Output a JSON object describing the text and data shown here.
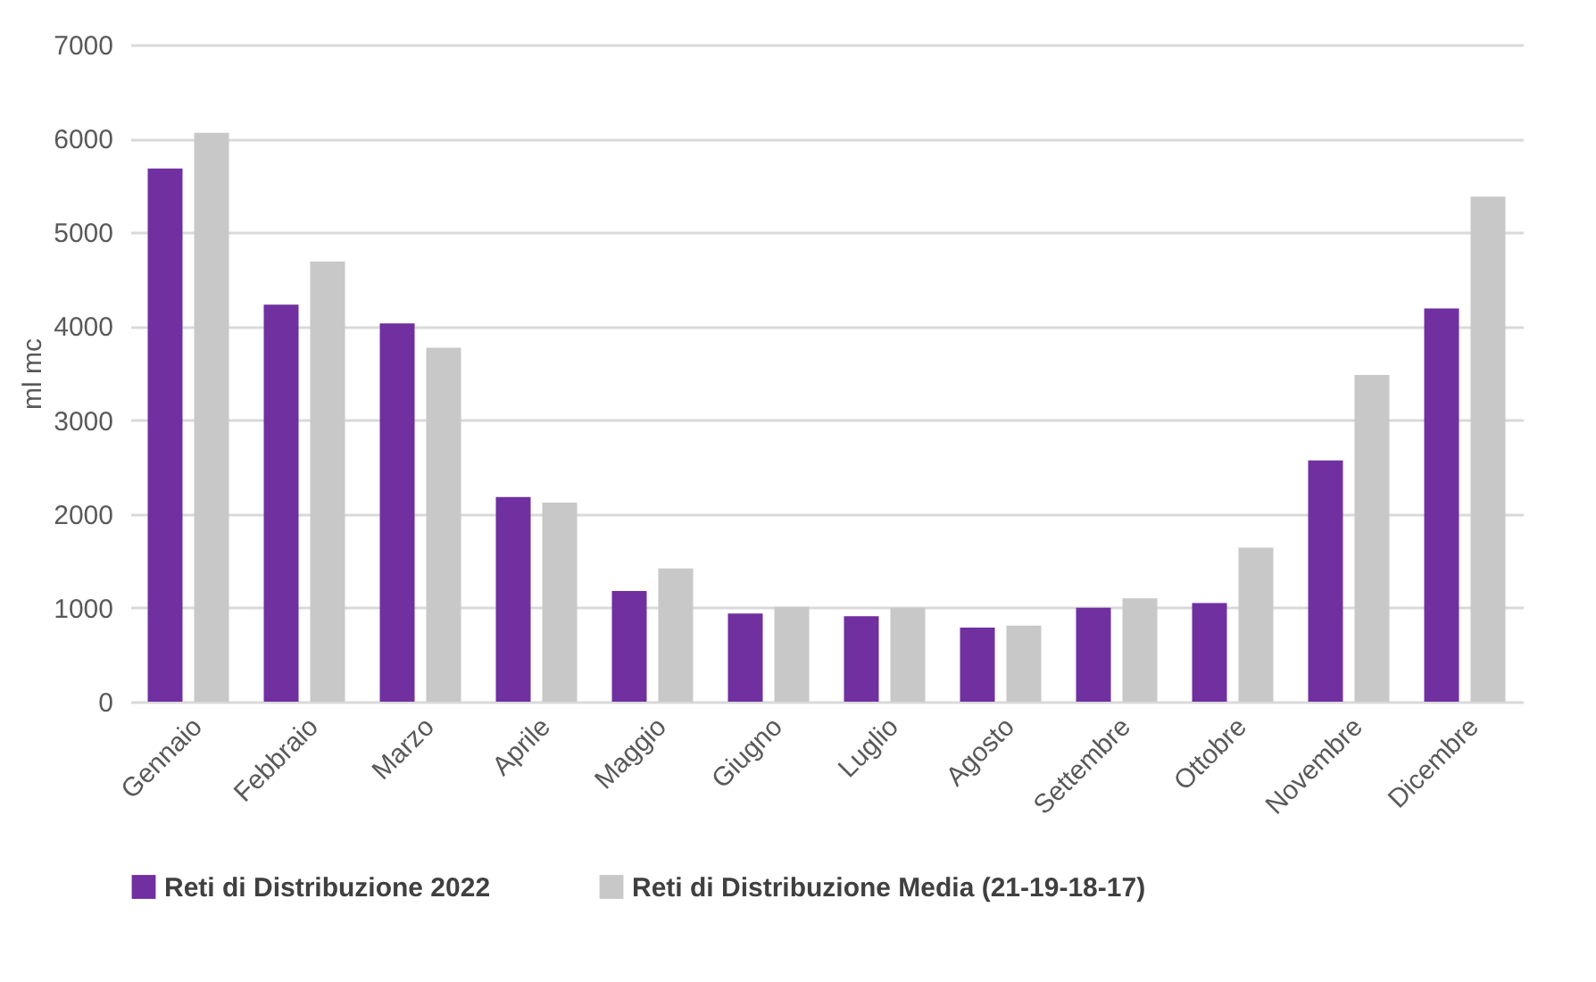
{
  "chart_data": {
    "type": "bar",
    "ylabel": "ml mc",
    "categories": [
      "Gennaio",
      "Febbraio",
      "Marzo",
      "Aprile",
      "Maggio",
      "Giugno",
      "Luglio",
      "Agosto",
      "Settembre",
      "Ottobre",
      "Novembre",
      "Dicembre"
    ],
    "series": [
      {
        "name": "Reti di Distribuzione 2022",
        "color": "#7030a0",
        "values": [
          5680,
          4230,
          4030,
          2180,
          1180,
          940,
          910,
          790,
          1000,
          1050,
          2570,
          4190
        ]
      },
      {
        "name": "Reti di Distribuzione Media (21-19-18-17)",
        "color": "#c8c8c8",
        "values": [
          6060,
          4690,
          3770,
          2120,
          1420,
          1010,
          1000,
          810,
          1100,
          1640,
          3480,
          5380
        ]
      }
    ],
    "ylim": [
      0,
      7000
    ],
    "yticks": [
      0,
      1000,
      2000,
      3000,
      4000,
      5000,
      6000,
      7000
    ],
    "grid": "y",
    "legend": "bottom"
  }
}
